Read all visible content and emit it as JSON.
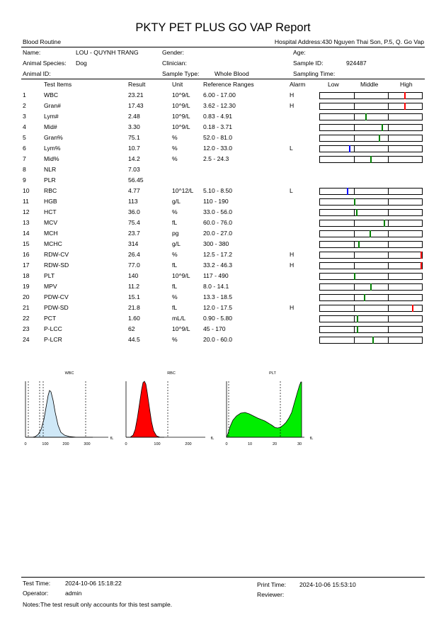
{
  "report": {
    "title": "PKTY PET PLUS GO VAP Report",
    "subtitle": "Blood Routine",
    "hospital_address": "Hospital Address:430 Nguyen Thai Son, P.5, Q. Go Vap"
  },
  "patient": {
    "name_label": "Name:",
    "name": "LOU - QUYNH TRANG",
    "species_label": "Animal Species:",
    "species": "Dog",
    "animal_id_label": "Animal ID:",
    "animal_id": "",
    "gender_label": "Gender:",
    "gender": "",
    "clinician_label": "Clinician:",
    "clinician": "",
    "sample_type_label": "Sample Type:",
    "sample_type": "Whole Blood",
    "age_label": "Age:",
    "age": "",
    "sample_id_label": "Sample ID:",
    "sample_id": "924487",
    "sampling_time_label": "Sampling Time:",
    "sampling_time": ""
  },
  "columns": {
    "test_items": "Test Items",
    "result": "Result",
    "unit": "Unit",
    "reference": "Reference Ranges",
    "alarm": "Alarm",
    "low": "Low",
    "middle": "Middle",
    "high": "High"
  },
  "rows": [
    {
      "no": "1",
      "name": "WBC",
      "result": "23.21",
      "unit": "10^9/L",
      "ref": "6.00 - 17.00",
      "alarm": "H",
      "marker": 0.83,
      "color": "#ff0000"
    },
    {
      "no": "2",
      "name": "Gran#",
      "result": "17.43",
      "unit": "10^9/L",
      "ref": "3.62 - 12.30",
      "alarm": "H",
      "marker": 0.83,
      "color": "#ff0000"
    },
    {
      "no": "3",
      "name": "Lym#",
      "result": "2.48",
      "unit": "10^9/L",
      "ref": "0.83 - 4.91",
      "alarm": "",
      "marker": 0.45,
      "color": "#008000"
    },
    {
      "no": "4",
      "name": "Mid#",
      "result": "3.30",
      "unit": "10^9/L",
      "ref": "0.18 - 3.71",
      "alarm": "",
      "marker": 0.61,
      "color": "#008000"
    },
    {
      "no": "5",
      "name": "Gran%",
      "result": "75.1",
      "unit": "%",
      "ref": "52.0 - 81.0",
      "alarm": "",
      "marker": 0.58,
      "color": "#008000"
    },
    {
      "no": "6",
      "name": "Lym%",
      "result": "10.7",
      "unit": "%",
      "ref": "12.0 - 33.0",
      "alarm": "L",
      "marker": 0.29,
      "color": "#0000ff"
    },
    {
      "no": "7",
      "name": "Mid%",
      "result": "14.2",
      "unit": "%",
      "ref": "2.5 - 24.3",
      "alarm": "",
      "marker": 0.5,
      "color": "#008000"
    },
    {
      "no": "8",
      "name": "NLR",
      "result": "7.03",
      "unit": "",
      "ref": "",
      "alarm": "",
      "marker": null,
      "color": ""
    },
    {
      "no": "9",
      "name": "PLR",
      "result": "56.45",
      "unit": "",
      "ref": "",
      "alarm": "",
      "marker": null,
      "color": ""
    },
    {
      "no": "10",
      "name": "RBC",
      "result": "4.77",
      "unit": "10^12/L",
      "ref": "5.10 - 8.50",
      "alarm": "L",
      "marker": 0.27,
      "color": "#0000ff"
    },
    {
      "no": "11",
      "name": "HGB",
      "result": "113",
      "unit": "g/L",
      "ref": "110 - 190",
      "alarm": "",
      "marker": 0.34,
      "color": "#008000"
    },
    {
      "no": "12",
      "name": "HCT",
      "result": "36.0",
      "unit": "%",
      "ref": "33.0 - 56.0",
      "alarm": "",
      "marker": 0.36,
      "color": "#008000"
    },
    {
      "no": "13",
      "name": "MCV",
      "result": "75.4",
      "unit": "fL",
      "ref": "60.0 - 76.0",
      "alarm": "",
      "marker": 0.63,
      "color": "#008000"
    },
    {
      "no": "14",
      "name": "MCH",
      "result": "23.7",
      "unit": "pg",
      "ref": "20.0 - 27.0",
      "alarm": "",
      "marker": 0.49,
      "color": "#008000"
    },
    {
      "no": "15",
      "name": "MCHC",
      "result": "314",
      "unit": "g/L",
      "ref": "300 - 380",
      "alarm": "",
      "marker": 0.38,
      "color": "#008000"
    },
    {
      "no": "16",
      "name": "RDW-CV",
      "result": "26.4",
      "unit": "%",
      "ref": "12.5 - 17.2",
      "alarm": "H",
      "marker": 0.99,
      "color": "#ff0000"
    },
    {
      "no": "17",
      "name": "RDW-SD",
      "result": "77.0",
      "unit": "fL",
      "ref": "33.2 - 46.3",
      "alarm": "H",
      "marker": 0.99,
      "color": "#ff0000"
    },
    {
      "no": "18",
      "name": "PLT",
      "result": "140",
      "unit": "10^9/L",
      "ref": "117 - 490",
      "alarm": "",
      "marker": 0.34,
      "color": "#008000"
    },
    {
      "no": "19",
      "name": "MPV",
      "result": "11.2",
      "unit": "fL",
      "ref": "8.0 - 14.1",
      "alarm": "",
      "marker": 0.5,
      "color": "#008000"
    },
    {
      "no": "20",
      "name": "PDW-CV",
      "result": "15.1",
      "unit": "%",
      "ref": "13.3 - 18.5",
      "alarm": "",
      "marker": 0.44,
      "color": "#008000"
    },
    {
      "no": "21",
      "name": "PDW-SD",
      "result": "21.8",
      "unit": "fL",
      "ref": "12.0 - 17.5",
      "alarm": "H",
      "marker": 0.91,
      "color": "#ff0000"
    },
    {
      "no": "22",
      "name": "PCT",
      "result": "1.60",
      "unit": "mL/L",
      "ref": "0.90 - 5.80",
      "alarm": "",
      "marker": 0.37,
      "color": "#008000"
    },
    {
      "no": "23",
      "name": "P-LCC",
      "result": "62",
      "unit": "10^9/L",
      "ref": "45 - 170",
      "alarm": "",
      "marker": 0.37,
      "color": "#008000"
    },
    {
      "no": "24",
      "name": "P-LCR",
      "result": "44.5",
      "unit": "%",
      "ref": "20.0 - 60.0",
      "alarm": "",
      "marker": 0.52,
      "color": "#008000"
    }
  ],
  "histograms": {
    "wbc": {
      "title": "WBC",
      "unit": "fL",
      "ticks": [
        "0",
        "100",
        "200",
        "300"
      ],
      "fill": "#cfe8f7"
    },
    "rbc": {
      "title": "RBC",
      "unit": "fL",
      "ticks": [
        "0",
        "100",
        "200"
      ],
      "fill": "#ff0000"
    },
    "plt": {
      "title": "PLT",
      "unit": "fL",
      "ticks": [
        "0",
        "10",
        "20",
        "30"
      ],
      "fill": "#00ee00"
    }
  },
  "footer": {
    "test_time_label": "Test Time:",
    "test_time": "2024-10-06 15:18:22",
    "operator_label": "Operator:",
    "operator": "admin",
    "print_time_label": "Print Time:",
    "print_time": "2024-10-06 15:53:10",
    "reviewer_label": "Reviewer:",
    "reviewer": "",
    "notes": "Notes:The test result only accounts for this test sample."
  }
}
